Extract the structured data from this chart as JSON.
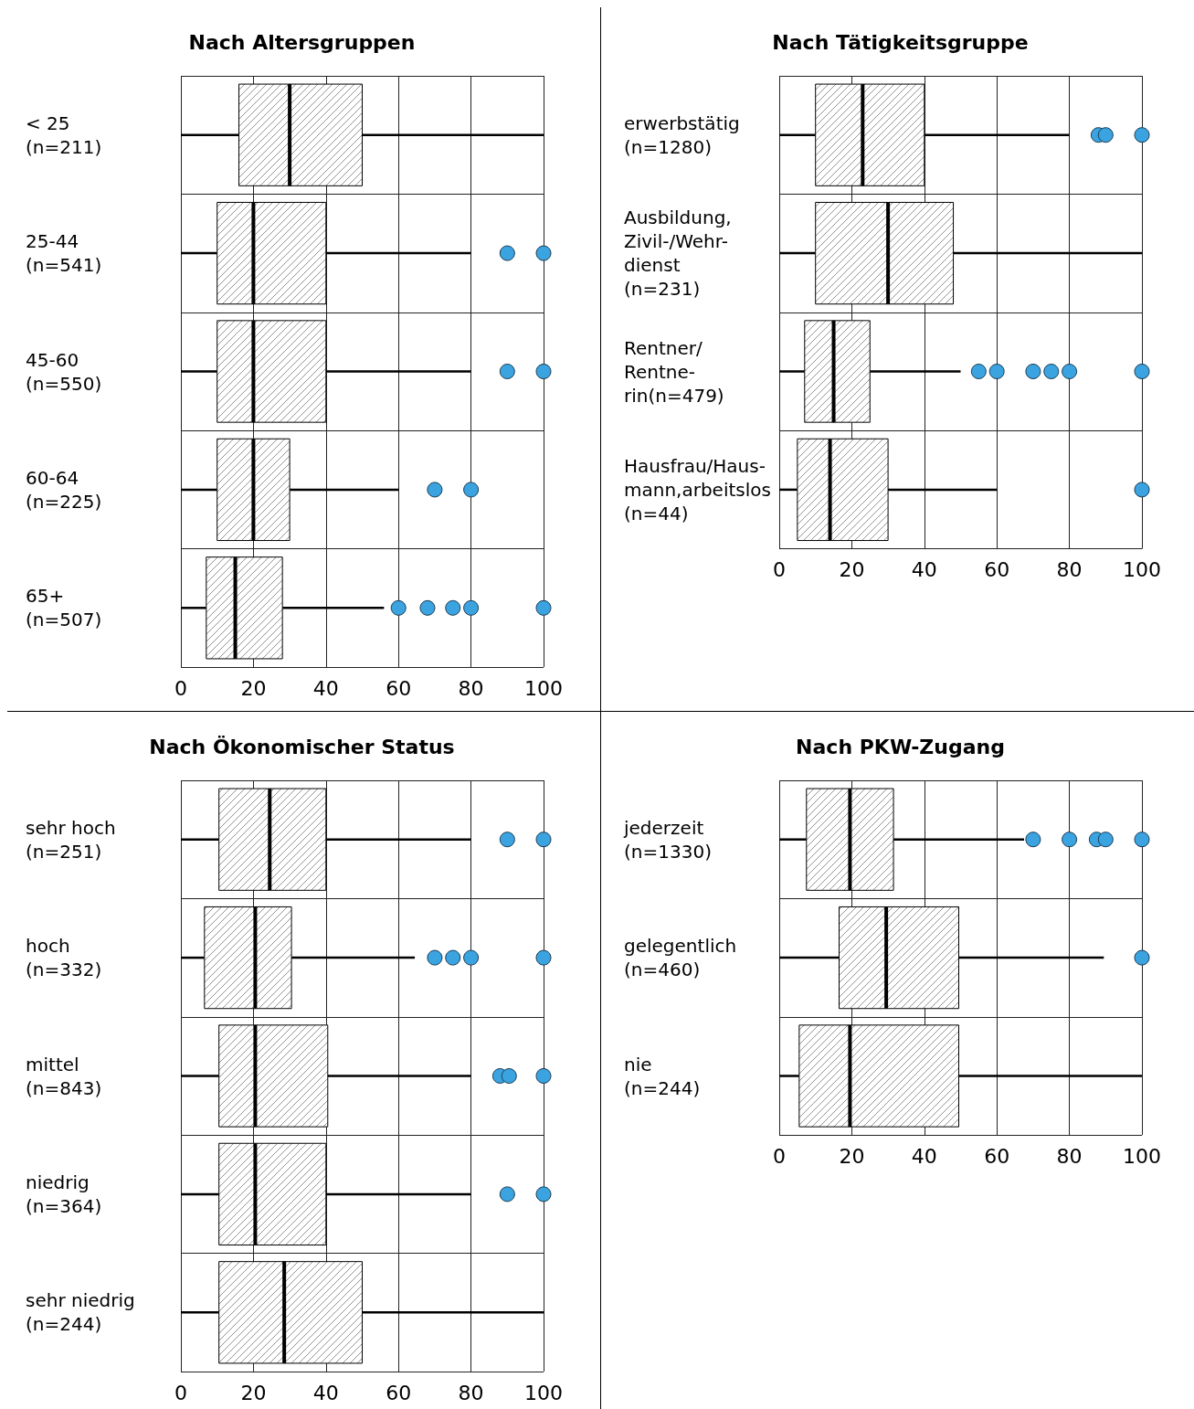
{
  "chart_data": [
    {
      "type": "box",
      "title": "Nach Altersgruppen",
      "orientation": "horizontal",
      "grid": true,
      "xlim": [
        0,
        100
      ],
      "xticks": [
        0,
        20,
        40,
        60,
        80,
        100
      ],
      "categories": [
        "< 25\n(n=211)",
        "25-44\n(n=541)",
        "45-60\n(n=550)",
        "60-64\n(n=225)",
        "65+\n(n=507)"
      ],
      "series": [
        {
          "boxes": [
            {
              "low": 0,
              "q1": 16,
              "median": 30,
              "q3": 50,
              "high": 100
            },
            {
              "low": 0,
              "q1": 10,
              "median": 20,
              "q3": 40,
              "high": 80
            },
            {
              "low": 0,
              "q1": 10,
              "median": 20,
              "q3": 40,
              "high": 80
            },
            {
              "low": 0,
              "q1": 10,
              "median": 20,
              "q3": 30,
              "high": 60
            },
            {
              "low": 0,
              "q1": 7,
              "median": 15,
              "q3": 28,
              "high": 56
            }
          ]
        },
        {
          "type": "scatter",
          "color": "#3aa3e0",
          "x": [
            "25-44\n(n=541)",
            "25-44\n(n=541)",
            "45-60\n(n=550)",
            "45-60\n(n=550)",
            "60-64\n(n=225)",
            "60-64\n(n=225)",
            "65+\n(n=507)",
            "65+\n(n=507)",
            "65+\n(n=507)",
            "65+\n(n=507)",
            "65+\n(n=507)"
          ],
          "values": [
            90,
            100,
            90,
            100,
            70,
            80,
            60,
            68,
            75,
            80,
            100
          ]
        }
      ]
    },
    {
      "type": "box",
      "title": "Nach Tätigkeitsgruppe",
      "orientation": "horizontal",
      "grid": true,
      "xlim": [
        0,
        100
      ],
      "xticks": [
        0,
        20,
        40,
        60,
        80,
        100
      ],
      "categories": [
        "erwerbstätig\n(n=1280)",
        "Ausbildung,\nZivil-/Wehr-\ndienst\n(n=231)",
        "Rentner/\nRentne-\nrin(n=479)",
        "Hausfrau/Haus-\nmann,arbeitslos\n(n=44)"
      ],
      "series": [
        {
          "boxes": [
            {
              "low": 0,
              "q1": 10,
              "median": 23,
              "q3": 40,
              "high": 80
            },
            {
              "low": 0,
              "q1": 10,
              "median": 30,
              "q3": 48,
              "high": 100
            },
            {
              "low": 0,
              "q1": 7,
              "median": 15,
              "q3": 25,
              "high": 50
            },
            {
              "low": 0,
              "q1": 5,
              "median": 14,
              "q3": 30,
              "high": 60
            }
          ]
        },
        {
          "type": "scatter",
          "color": "#3aa3e0",
          "x": [
            "erwerbstätig\n(n=1280)",
            "erwerbstätig\n(n=1280)",
            "erwerbstätig\n(n=1280)",
            "Rentner/\nRentne-\nrin(n=479)",
            "Rentner/\nRentne-\nrin(n=479)",
            "Rentner/\nRentne-\nrin(n=479)",
            "Rentner/\nRentne-\nrin(n=479)",
            "Rentner/\nRentne-\nrin(n=479)",
            "Rentner/\nRentne-\nrin(n=479)",
            "Hausfrau/Haus-\nmann,arbeitslos\n(n=44)"
          ],
          "values": [
            88,
            90,
            100,
            55,
            60,
            70,
            75,
            80,
            100,
            100
          ]
        }
      ]
    },
    {
      "type": "box",
      "title": "Nach Ökonomischer Status",
      "orientation": "horizontal",
      "grid": true,
      "xlim": [
        0,
        100
      ],
      "xticks": [
        0,
        20,
        40,
        60,
        80,
        100
      ],
      "categories": [
        "sehr hoch\n(n=251)",
        "hoch\n(n=332)",
        "mittel\n(n=843)",
        "niedrig\n(n=364)",
        "sehr niedrig\n(n=244)"
      ],
      "series": [
        {
          "boxes": [
            {
              "low": 0,
              "q1": 10.5,
              "median": 24.5,
              "q3": 40,
              "high": 80
            },
            {
              "low": 0,
              "q1": 6.5,
              "median": 20.5,
              "q3": 30.5,
              "high": 64.5
            },
            {
              "low": 0,
              "q1": 10.5,
              "median": 20.5,
              "q3": 40.5,
              "high": 80
            },
            {
              "low": 0,
              "q1": 10.5,
              "median": 20.5,
              "q3": 40,
              "high": 80
            },
            {
              "low": 0,
              "q1": 10.5,
              "median": 28.5,
              "q3": 50,
              "high": 100
            }
          ]
        },
        {
          "type": "scatter",
          "color": "#3aa3e0",
          "x": [
            "sehr hoch\n(n=251)",
            "sehr hoch\n(n=251)",
            "hoch\n(n=332)",
            "hoch\n(n=332)",
            "hoch\n(n=332)",
            "hoch\n(n=332)",
            "mittel\n(n=843)",
            "mittel\n(n=843)",
            "mittel\n(n=843)",
            "niedrig\n(n=364)",
            "niedrig\n(n=364)"
          ],
          "values": [
            90,
            100,
            70,
            75,
            80,
            100,
            88,
            90.5,
            100,
            90,
            100
          ]
        }
      ]
    },
    {
      "type": "box",
      "title": "Nach PKW-Zugang",
      "orientation": "horizontal",
      "grid": true,
      "xlim": [
        0,
        100
      ],
      "xticks": [
        0,
        20,
        40,
        60,
        80,
        100
      ],
      "categories": [
        "jederzeit\n(n=1330)",
        "gelegentlich\n(n=460)",
        "nie\n(n=244)"
      ],
      "series": [
        {
          "boxes": [
            {
              "low": 0,
              "q1": 7.5,
              "median": 19.5,
              "q3": 31.5,
              "high": 67.5
            },
            {
              "low": 0,
              "q1": 16.5,
              "median": 29.5,
              "q3": 49.5,
              "high": 89.5
            },
            {
              "low": 0,
              "q1": 5.5,
              "median": 19.5,
              "q3": 49.5,
              "high": 100
            }
          ]
        },
        {
          "type": "scatter",
          "color": "#3aa3e0",
          "x": [
            "jederzeit\n(n=1330)",
            "jederzeit\n(n=1330)",
            "jederzeit\n(n=1330)",
            "jederzeit\n(n=1330)",
            "jederzeit\n(n=1330)",
            "gelegentlich\n(n=460)"
          ],
          "values": [
            70,
            80,
            87.5,
            90,
            100,
            100
          ]
        }
      ]
    }
  ]
}
